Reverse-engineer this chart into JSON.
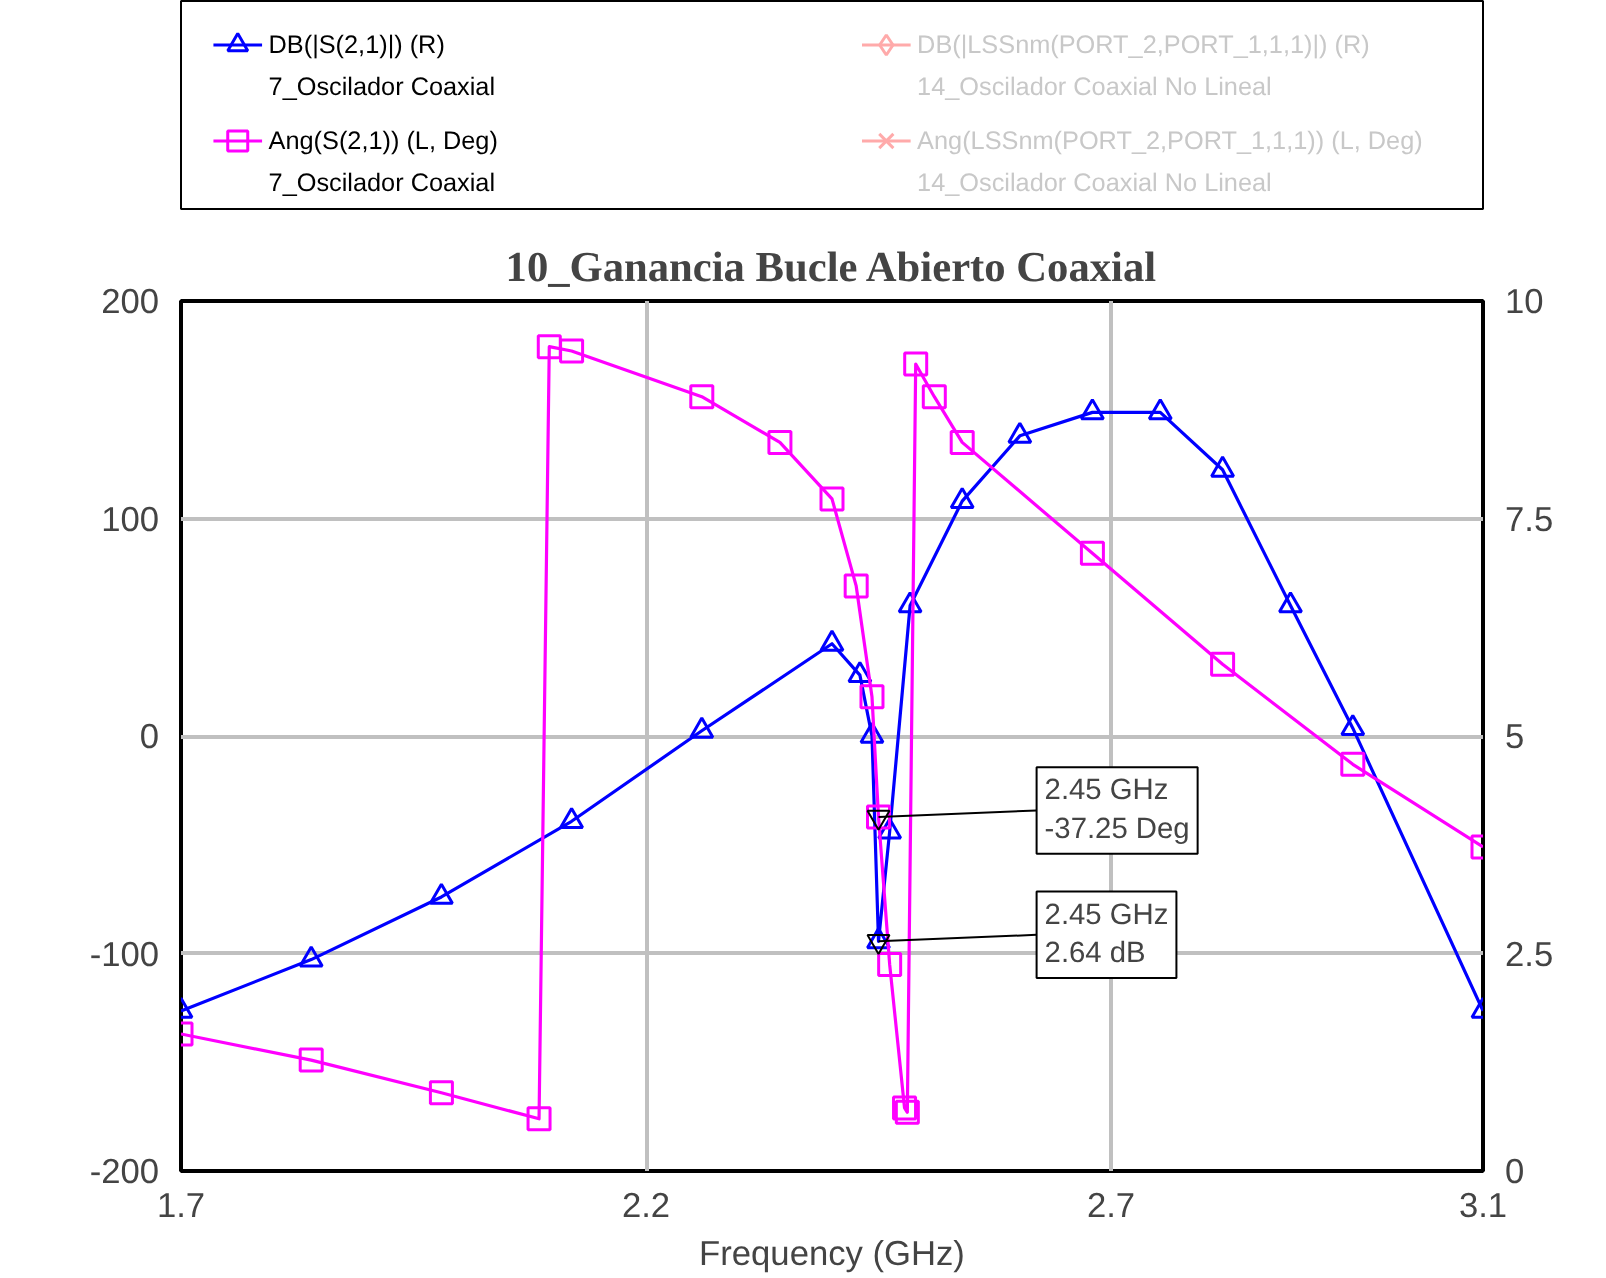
{
  "chart_data": {
    "type": "line",
    "title": "10_Ganancia Bucle Abierto Coaxial",
    "xlabel": "Frequency (GHz)",
    "xlim": [
      1.7,
      3.1
    ],
    "xticks": [
      1.7,
      2.2,
      2.7,
      3.1
    ],
    "ylim": [
      -200,
      200
    ],
    "yticks": [
      -200,
      -100,
      0,
      100,
      200
    ],
    "y2lim": [
      0,
      10
    ],
    "y2ticks": [
      0,
      2.5,
      5,
      7.5,
      10
    ],
    "grid": true,
    "legend": "top",
    "line_style": "solid",
    "series": [
      {
        "name": "DB(|S(2,1)|) (R)\n7_Oscilador Coaxial",
        "color": "#0000ff",
        "axis": "y2",
        "marker": "triangle",
        "x": [
          1.7,
          1.84,
          1.98,
          2.12,
          2.26,
          2.4,
          2.43,
          2.443,
          2.45,
          2.462,
          2.484,
          2.54,
          2.602,
          2.68,
          2.753,
          2.82,
          2.893,
          2.96,
          3.1
        ],
        "values": [
          1.84,
          2.43,
          3.15,
          4.02,
          5.06,
          6.06,
          5.7,
          5.0,
          2.64,
          3.9,
          6.5,
          7.7,
          8.45,
          8.72,
          8.72,
          8.06,
          6.5,
          5.09,
          1.84
        ]
      },
      {
        "name": "Ang(S(2,1)) (L, Deg)\n7_Oscilador Coaxial",
        "color": "#ff00ff",
        "marker": "square",
        "x": [
          1.7,
          1.84,
          1.98,
          2.085,
          2.096,
          2.12,
          2.26,
          2.344,
          2.4,
          2.426,
          2.443,
          2.45,
          2.462,
          2.478,
          2.481,
          2.49,
          2.51,
          2.54,
          2.68,
          2.82,
          2.96,
          3.1
        ],
        "values": [
          -137,
          -149,
          -164,
          -176,
          179,
          177,
          156,
          135,
          109,
          69,
          18,
          -37.25,
          -105,
          -171,
          -173,
          171,
          156,
          135,
          84,
          33,
          -13,
          -51
        ]
      },
      {
        "name": "DB(|LSSnm(PORT_2,PORT_1,1,1)|) (R)\n14_Oscilador Coaxial No Lineal",
        "color": "#ffaaaa",
        "axis": "y2",
        "marker": "diamond"
      },
      {
        "name": "Ang(LSSnm(PORT_2,PORT_1,1,1)) (L, Deg)\n14_Oscilador Coaxial No Lineal",
        "color": "#ffaaaa",
        "marker": "cross"
      }
    ],
    "annotations": [
      {
        "text": "2.45 GHz\n2.64 dB",
        "x": 2.45,
        "y": -94.4
      },
      {
        "text": "2.45 GHz\n-37.25 Deg",
        "x": 2.45,
        "y": -37.25
      }
    ]
  }
}
